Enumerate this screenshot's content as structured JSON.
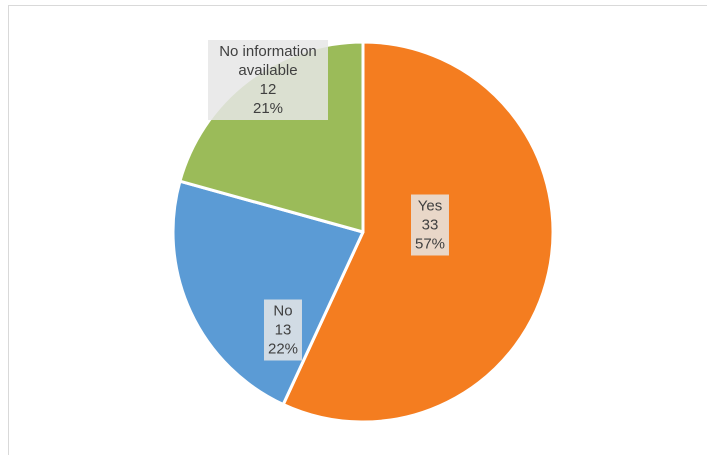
{
  "chart_data": {
    "type": "pie",
    "categories": [
      "Yes",
      "No",
      "No information available"
    ],
    "values": [
      33,
      13,
      12
    ],
    "percent_labels": [
      "57%",
      "22%",
      "21%"
    ],
    "colors": [
      "#f47d20",
      "#5b9bd5",
      "#9bbb59"
    ]
  }
}
